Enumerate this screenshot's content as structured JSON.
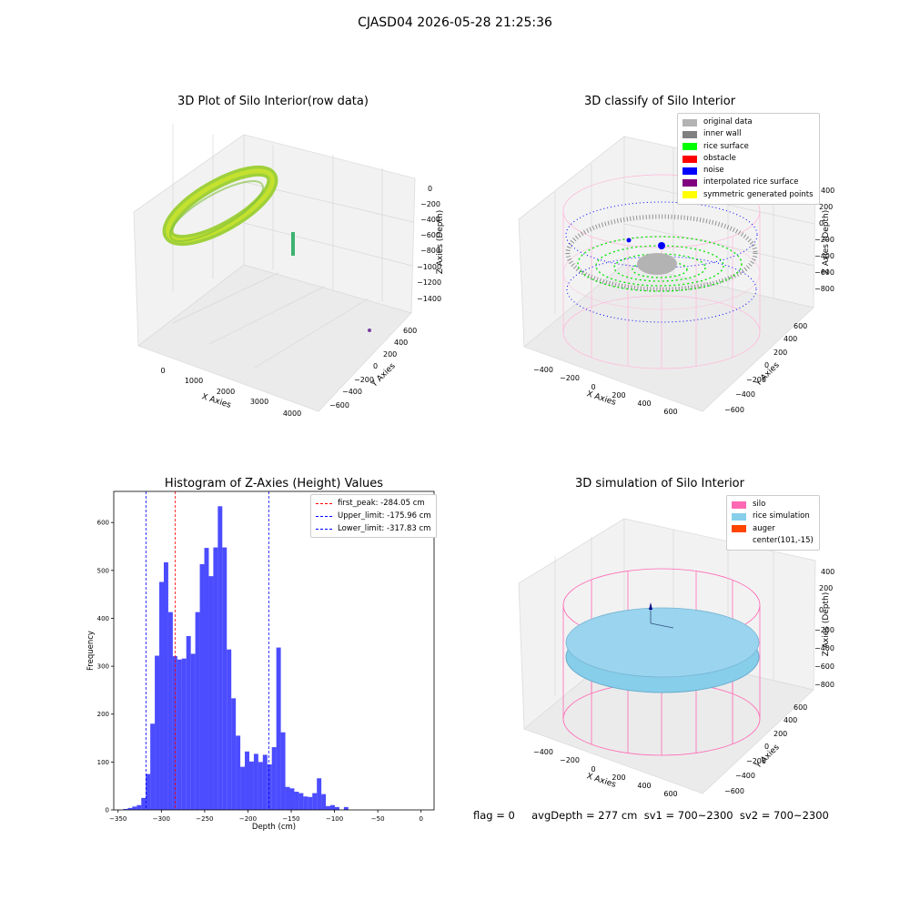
{
  "figure": {
    "suptitle": "CJASD04 2026-05-28 21:25:36",
    "footer": "flag = 0     avgDepth = 277 cm  sv1 = 700~2300  sv2 = 700~2300"
  },
  "panels": {
    "raw": {
      "title": "3D Plot of Silo Interior(row data)",
      "xlabel": "X Axies",
      "ylabel": "Y Axies",
      "zlabel": "Z Axies (Depth)",
      "xticks": [
        "0",
        "1000",
        "2000",
        "3000",
        "4000"
      ],
      "yticks": [
        "600",
        "400",
        "200",
        "0",
        "−200",
        "−400",
        "−600"
      ],
      "zticks": [
        "0",
        "−200",
        "−400",
        "−600",
        "−800",
        "−1000",
        "−1200",
        "−1400"
      ]
    },
    "classify": {
      "title": "3D classify of Silo Interior",
      "xlabel": "X Axies",
      "ylabel": "Y Axies",
      "zlabel": "Z Axies (Depth)",
      "xticks": [
        "−400",
        "−200",
        "0",
        "200",
        "400",
        "600"
      ],
      "yticks": [
        "600",
        "400",
        "200",
        "0",
        "−200",
        "−400",
        "−600"
      ],
      "zticks": [
        "400",
        "200",
        "0",
        "−200",
        "−400",
        "−600",
        "−800"
      ],
      "legend": [
        {
          "label": "original data",
          "color": "#b3b3b3"
        },
        {
          "label": "inner wall",
          "color": "#808080"
        },
        {
          "label": "rice surface",
          "color": "#00ff00"
        },
        {
          "label": "obstacle",
          "color": "#ff0000"
        },
        {
          "label": "noise",
          "color": "#0000ff"
        },
        {
          "label": "interpolated rice surface",
          "color": "#800080"
        },
        {
          "label": "symmetric generated points",
          "color": "#ffff00"
        }
      ]
    },
    "simulation": {
      "title": "3D simulation of Silo Interior",
      "xlabel": "X Axies",
      "ylabel": "Y Axies",
      "zlabel": "Z Axies (Depth)",
      "xticks": [
        "−400",
        "−200",
        "0",
        "200",
        "400",
        "600"
      ],
      "yticks": [
        "600",
        "400",
        "200",
        "0",
        "−200",
        "−400",
        "−600"
      ],
      "zticks": [
        "400",
        "200",
        "0",
        "−200",
        "−400",
        "−600",
        "−800"
      ],
      "legend": [
        {
          "label": "silo",
          "color": "#ff69b4"
        },
        {
          "label": "rice simulation",
          "color": "#87ceeb"
        },
        {
          "label": "auger",
          "color": "#ff4500"
        },
        {
          "label": "center(101,-15)",
          "color": "#ffffff"
        }
      ]
    }
  },
  "chart_data": [
    {
      "type": "bar",
      "title": "Histogram of Z-Axies (Height) Values",
      "xlabel": "Depth (cm)",
      "ylabel": "Frequency",
      "xlim": [
        -355,
        15
      ],
      "ylim": [
        0,
        665
      ],
      "xticks": [
        -350,
        -300,
        -250,
        -200,
        -150,
        -100,
        -50,
        0
      ],
      "yticks": [
        0,
        100,
        200,
        300,
        400,
        500,
        600
      ],
      "bar_color": "#0000ff",
      "bin_width": 5.2,
      "bin_starts": [
        -344.0,
        -338.8,
        -333.6,
        -328.4,
        -323.2,
        -318.0,
        -312.8,
        -307.6,
        -302.4,
        -297.2,
        -292.0,
        -286.8,
        -281.6,
        -276.4,
        -271.2,
        -266.0,
        -260.8,
        -255.6,
        -250.4,
        -245.2,
        -240.0,
        -234.8,
        -229.6,
        -224.4,
        -219.2,
        -214.0,
        -208.8,
        -203.6,
        -198.4,
        -193.2,
        -188.0,
        -182.8,
        -177.6,
        -172.4,
        -167.2,
        -162.0,
        -156.8,
        -151.6,
        -146.4,
        -141.2,
        -136.0,
        -130.8,
        -125.6,
        -120.4,
        -115.2,
        -110.0,
        -104.8,
        -99.6,
        -94.4,
        -89.2,
        -84.0,
        -78.8,
        -73.6,
        -68.4,
        -63.2,
        -58.0,
        -52.8,
        -47.6,
        -42.4,
        -37.2,
        -32.0,
        -26.8,
        -21.6,
        -16.4,
        -11.2,
        -6.0
      ],
      "values": [
        2,
        4,
        7,
        10,
        25,
        75,
        180,
        322,
        476,
        517,
        413,
        321,
        314,
        316,
        363,
        326,
        413,
        513,
        547,
        488,
        548,
        634,
        548,
        335,
        233,
        155,
        90,
        122,
        101,
        117,
        100,
        115,
        95,
        131,
        339,
        162,
        48,
        45,
        38,
        35,
        28,
        27,
        35,
        66,
        33,
        8,
        10,
        6,
        0,
        6,
        0,
        0,
        0,
        0,
        0,
        0,
        0,
        0,
        0,
        0,
        0,
        0,
        0,
        0,
        0,
        0
      ],
      "lines": [
        {
          "label": "first_peak: -284.05 cm",
          "x": -284.05,
          "color": "#ff0000"
        },
        {
          "label": "Upper_limit: -175.96 cm",
          "x": -175.96,
          "color": "#0000ff"
        },
        {
          "label": "Lower_limit: -317.83 cm",
          "x": -317.83,
          "color": "#0000ff"
        }
      ],
      "legend_position": "top-right"
    }
  ]
}
